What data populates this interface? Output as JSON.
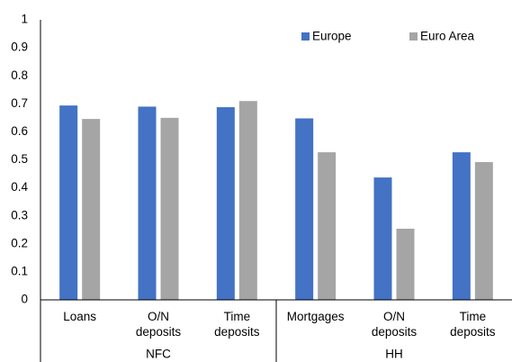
{
  "chart_data": {
    "type": "bar",
    "categories": [
      "Loans",
      "O/N deposits",
      "Time deposits",
      "Mortgages",
      "O/N deposits",
      "Time deposits"
    ],
    "groups": [
      "NFC",
      "HH"
    ],
    "series": [
      {
        "name": "Europe",
        "color": "#4472c4",
        "values": [
          0.694,
          0.69,
          0.688,
          0.648,
          0.437,
          0.527
        ]
      },
      {
        "name": "Euro Area",
        "color": "#a5a5a5",
        "values": [
          0.646,
          0.65,
          0.71,
          0.527,
          0.254,
          0.492
        ]
      }
    ],
    "ylim": [
      0,
      1
    ],
    "yticks": [
      0,
      0.1,
      0.2,
      0.3,
      0.4,
      0.5,
      0.6,
      0.7,
      0.8,
      0.9,
      1
    ],
    "grid": false,
    "legend": "top-right"
  }
}
